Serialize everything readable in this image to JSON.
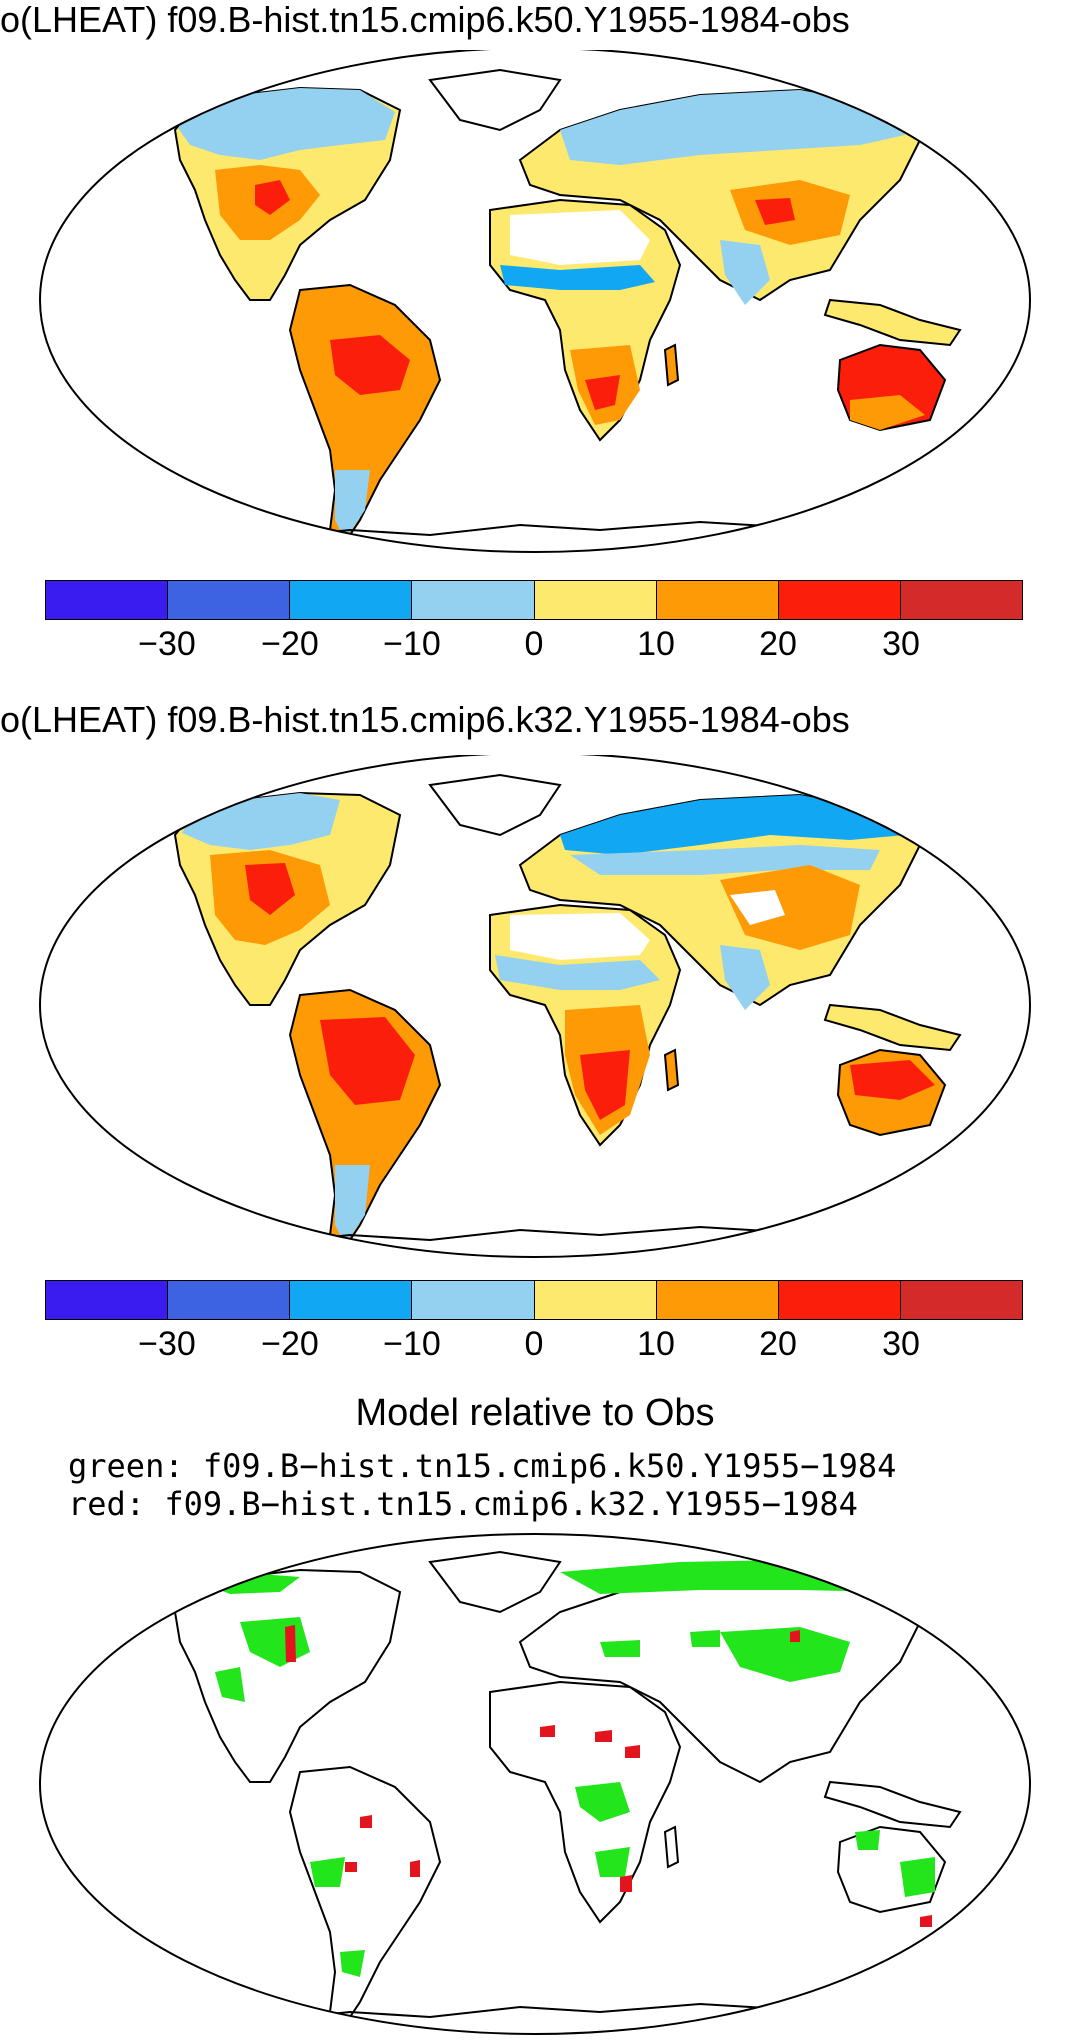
{
  "panel1": {
    "title": "o(LHEAT) f09.B-hist.tn15.cmip6.k50.Y1955-1984-obs",
    "colorbar": {
      "colors": [
        "#3a1cf0",
        "#3d63e3",
        "#12a7f2",
        "#94d0ef",
        "#fde96e",
        "#fd9a06",
        "#fb1e0a",
        "#d42a2a"
      ],
      "tick_labels": [
        "−30",
        "−20",
        "−10",
        "0",
        "10",
        "20",
        "30"
      ]
    }
  },
  "panel2": {
    "title": "o(LHEAT) f09.B-hist.tn15.cmip6.k32.Y1955-1984-obs",
    "colorbar": {
      "colors": [
        "#3a1cf0",
        "#3d63e3",
        "#12a7f2",
        "#94d0ef",
        "#fde96e",
        "#fd9a06",
        "#fb1e0a",
        "#d42a2a"
      ],
      "tick_labels": [
        "−30",
        "−20",
        "−10",
        "0",
        "10",
        "20",
        "30"
      ]
    }
  },
  "panel3": {
    "title": "Model relative to Obs",
    "legend_green": "green: f09.B−hist.tn15.cmip6.k50.Y1955−1984",
    "legend_red": "red: f09.B−hist.tn15.cmip6.k32.Y1955−1984",
    "colors": {
      "green": "#22e51c",
      "red": "#e4141e"
    }
  }
}
